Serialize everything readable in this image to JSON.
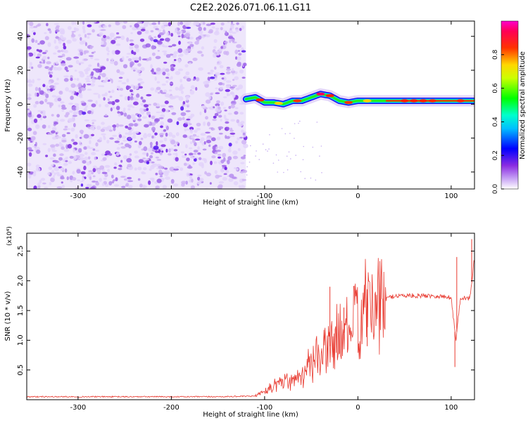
{
  "title": "C2E2.2026.071.06.11.G11",
  "chart_data": [
    {
      "type": "heatmap",
      "title": "C2E2.2026.071.06.11.G11",
      "xlabel": "Height of straight line (km)",
      "ylabel": "Frequency (Hz)",
      "xlim": [
        -355,
        125
      ],
      "ylim": [
        -50,
        49
      ],
      "xticks": [
        -300,
        -200,
        -100,
        0,
        100
      ],
      "yticks": [
        -40,
        -20,
        0,
        20,
        40
      ],
      "noise_region_x": [
        -355,
        -120
      ],
      "signal_track": {
        "x": [
          -120,
          -110,
          -100,
          -90,
          -80,
          -70,
          -60,
          -50,
          -40,
          -30,
          -20,
          -10,
          0,
          10,
          20,
          40,
          60,
          80,
          100,
          125
        ],
        "freq": [
          3,
          4,
          1,
          1,
          0,
          2,
          2,
          4,
          6,
          5,
          2,
          1,
          2,
          2,
          2,
          2,
          2,
          2,
          2,
          2
        ]
      },
      "colorbar": {
        "label": "Normalized spectral amplitude",
        "range": [
          0,
          1
        ],
        "ticks": [
          0.0,
          0.2,
          0.4,
          0.6,
          0.8
        ],
        "colors": [
          "#ffffff",
          "#8a2be2",
          "#0000ff",
          "#00ffff",
          "#00ff00",
          "#ffff00",
          "#ff0000",
          "#ff00ff"
        ]
      }
    },
    {
      "type": "line",
      "xlabel": "Height of straight line (km)",
      "ylabel": "SNR (10 * v/v)",
      "y_multiplier": "(x10⁴)",
      "xlim": [
        -355,
        125
      ],
      "ylim": [
        0,
        2.8
      ],
      "xticks": [
        -300,
        -200,
        -100,
        0,
        100
      ],
      "yticks": [
        0.5,
        1.0,
        1.5,
        2.0,
        2.5
      ],
      "ytick_labels": [
        "0.5",
        "1.0",
        "1.5",
        "2.0",
        "2.5"
      ],
      "color": "#e8392f",
      "series": [
        {
          "name": "SNR",
          "x": [
            -355,
            -300,
            -250,
            -200,
            -150,
            -110,
            -100,
            -90,
            -80,
            -70,
            -60,
            -50,
            -40,
            -30,
            -20,
            -10,
            0,
            10,
            20,
            30,
            40,
            60,
            80,
            100,
            105,
            110,
            120,
            125
          ],
          "y": [
            0.05,
            0.05,
            0.05,
            0.05,
            0.05,
            0.06,
            0.15,
            0.25,
            0.3,
            0.35,
            0.45,
            0.6,
            0.75,
            0.9,
            1.05,
            1.2,
            1.35,
            1.5,
            1.6,
            1.7,
            1.75,
            1.75,
            1.75,
            1.72,
            1.0,
            1.72,
            1.7,
            2.4
          ]
        }
      ]
    }
  ]
}
